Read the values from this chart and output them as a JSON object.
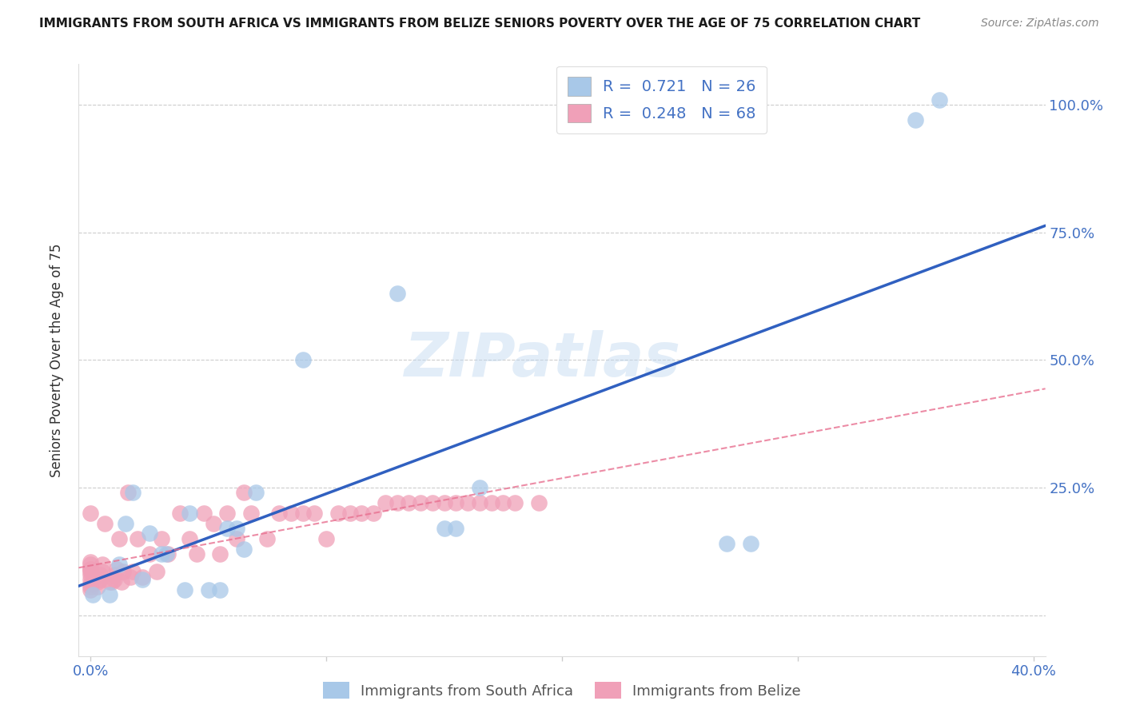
{
  "title": "IMMIGRANTS FROM SOUTH AFRICA VS IMMIGRANTS FROM BELIZE SENIORS POVERTY OVER THE AGE OF 75 CORRELATION CHART",
  "source": "Source: ZipAtlas.com",
  "ylabel_label": "Seniors Poverty Over the Age of 75",
  "xlim": [
    -0.005,
    0.405
  ],
  "ylim": [
    -0.08,
    1.08
  ],
  "xticks": [
    0.0,
    0.1,
    0.2,
    0.3,
    0.4
  ],
  "xtick_labels": [
    "0.0%",
    "",
    "",
    "",
    "40.0%"
  ],
  "ytick_labels_right": [
    "100.0%",
    "75.0%",
    "50.0%",
    "25.0%",
    ""
  ],
  "yticks_right": [
    1.0,
    0.75,
    0.5,
    0.25,
    0.0
  ],
  "watermark": "ZIPatlas",
  "legend_R1": "0.721",
  "legend_N1": "26",
  "legend_R2": "0.248",
  "legend_N2": "68",
  "color_blue": "#a8c8e8",
  "color_pink": "#f0a0b8",
  "color_blue_line": "#3060c0",
  "color_pink_line": "#e87090",
  "color_text_blue": "#4472c4",
  "color_axis_text": "#4472c4",
  "south_africa_x": [
    0.001,
    0.008,
    0.012,
    0.015,
    0.018,
    0.022,
    0.025,
    0.03,
    0.032,
    0.04,
    0.042,
    0.05,
    0.055,
    0.058,
    0.062,
    0.065,
    0.07,
    0.09,
    0.13,
    0.15,
    0.155,
    0.165,
    0.27,
    0.28,
    0.35,
    0.36
  ],
  "south_africa_y": [
    0.04,
    0.04,
    0.1,
    0.18,
    0.24,
    0.07,
    0.16,
    0.12,
    0.12,
    0.05,
    0.2,
    0.05,
    0.05,
    0.17,
    0.17,
    0.13,
    0.24,
    0.5,
    0.63,
    0.17,
    0.17,
    0.25,
    0.14,
    0.14,
    0.97,
    1.01
  ],
  "belize_x": [
    0.0,
    0.0,
    0.0,
    0.0,
    0.0,
    0.0,
    0.0,
    0.0,
    0.0,
    0.0,
    0.0,
    0.003,
    0.003,
    0.004,
    0.004,
    0.005,
    0.005,
    0.006,
    0.008,
    0.009,
    0.01,
    0.01,
    0.011,
    0.012,
    0.013,
    0.014,
    0.016,
    0.017,
    0.018,
    0.02,
    0.022,
    0.025,
    0.028,
    0.03,
    0.033,
    0.038,
    0.042,
    0.045,
    0.048,
    0.052,
    0.055,
    0.058,
    0.062,
    0.065,
    0.068,
    0.075,
    0.08,
    0.085,
    0.09,
    0.095,
    0.1,
    0.105,
    0.11,
    0.115,
    0.12,
    0.125,
    0.13,
    0.135,
    0.14,
    0.145,
    0.15,
    0.155,
    0.16,
    0.165,
    0.17,
    0.175,
    0.18,
    0.19
  ],
  "belize_y": [
    0.05,
    0.055,
    0.06,
    0.07,
    0.08,
    0.085,
    0.09,
    0.09,
    0.1,
    0.105,
    0.2,
    0.055,
    0.065,
    0.07,
    0.08,
    0.085,
    0.1,
    0.18,
    0.065,
    0.065,
    0.07,
    0.08,
    0.09,
    0.15,
    0.065,
    0.085,
    0.24,
    0.075,
    0.085,
    0.15,
    0.075,
    0.12,
    0.085,
    0.15,
    0.12,
    0.2,
    0.15,
    0.12,
    0.2,
    0.18,
    0.12,
    0.2,
    0.15,
    0.24,
    0.2,
    0.15,
    0.2,
    0.2,
    0.2,
    0.2,
    0.15,
    0.2,
    0.2,
    0.2,
    0.2,
    0.22,
    0.22,
    0.22,
    0.22,
    0.22,
    0.22,
    0.22,
    0.22,
    0.22,
    0.22,
    0.22,
    0.22,
    0.22
  ]
}
